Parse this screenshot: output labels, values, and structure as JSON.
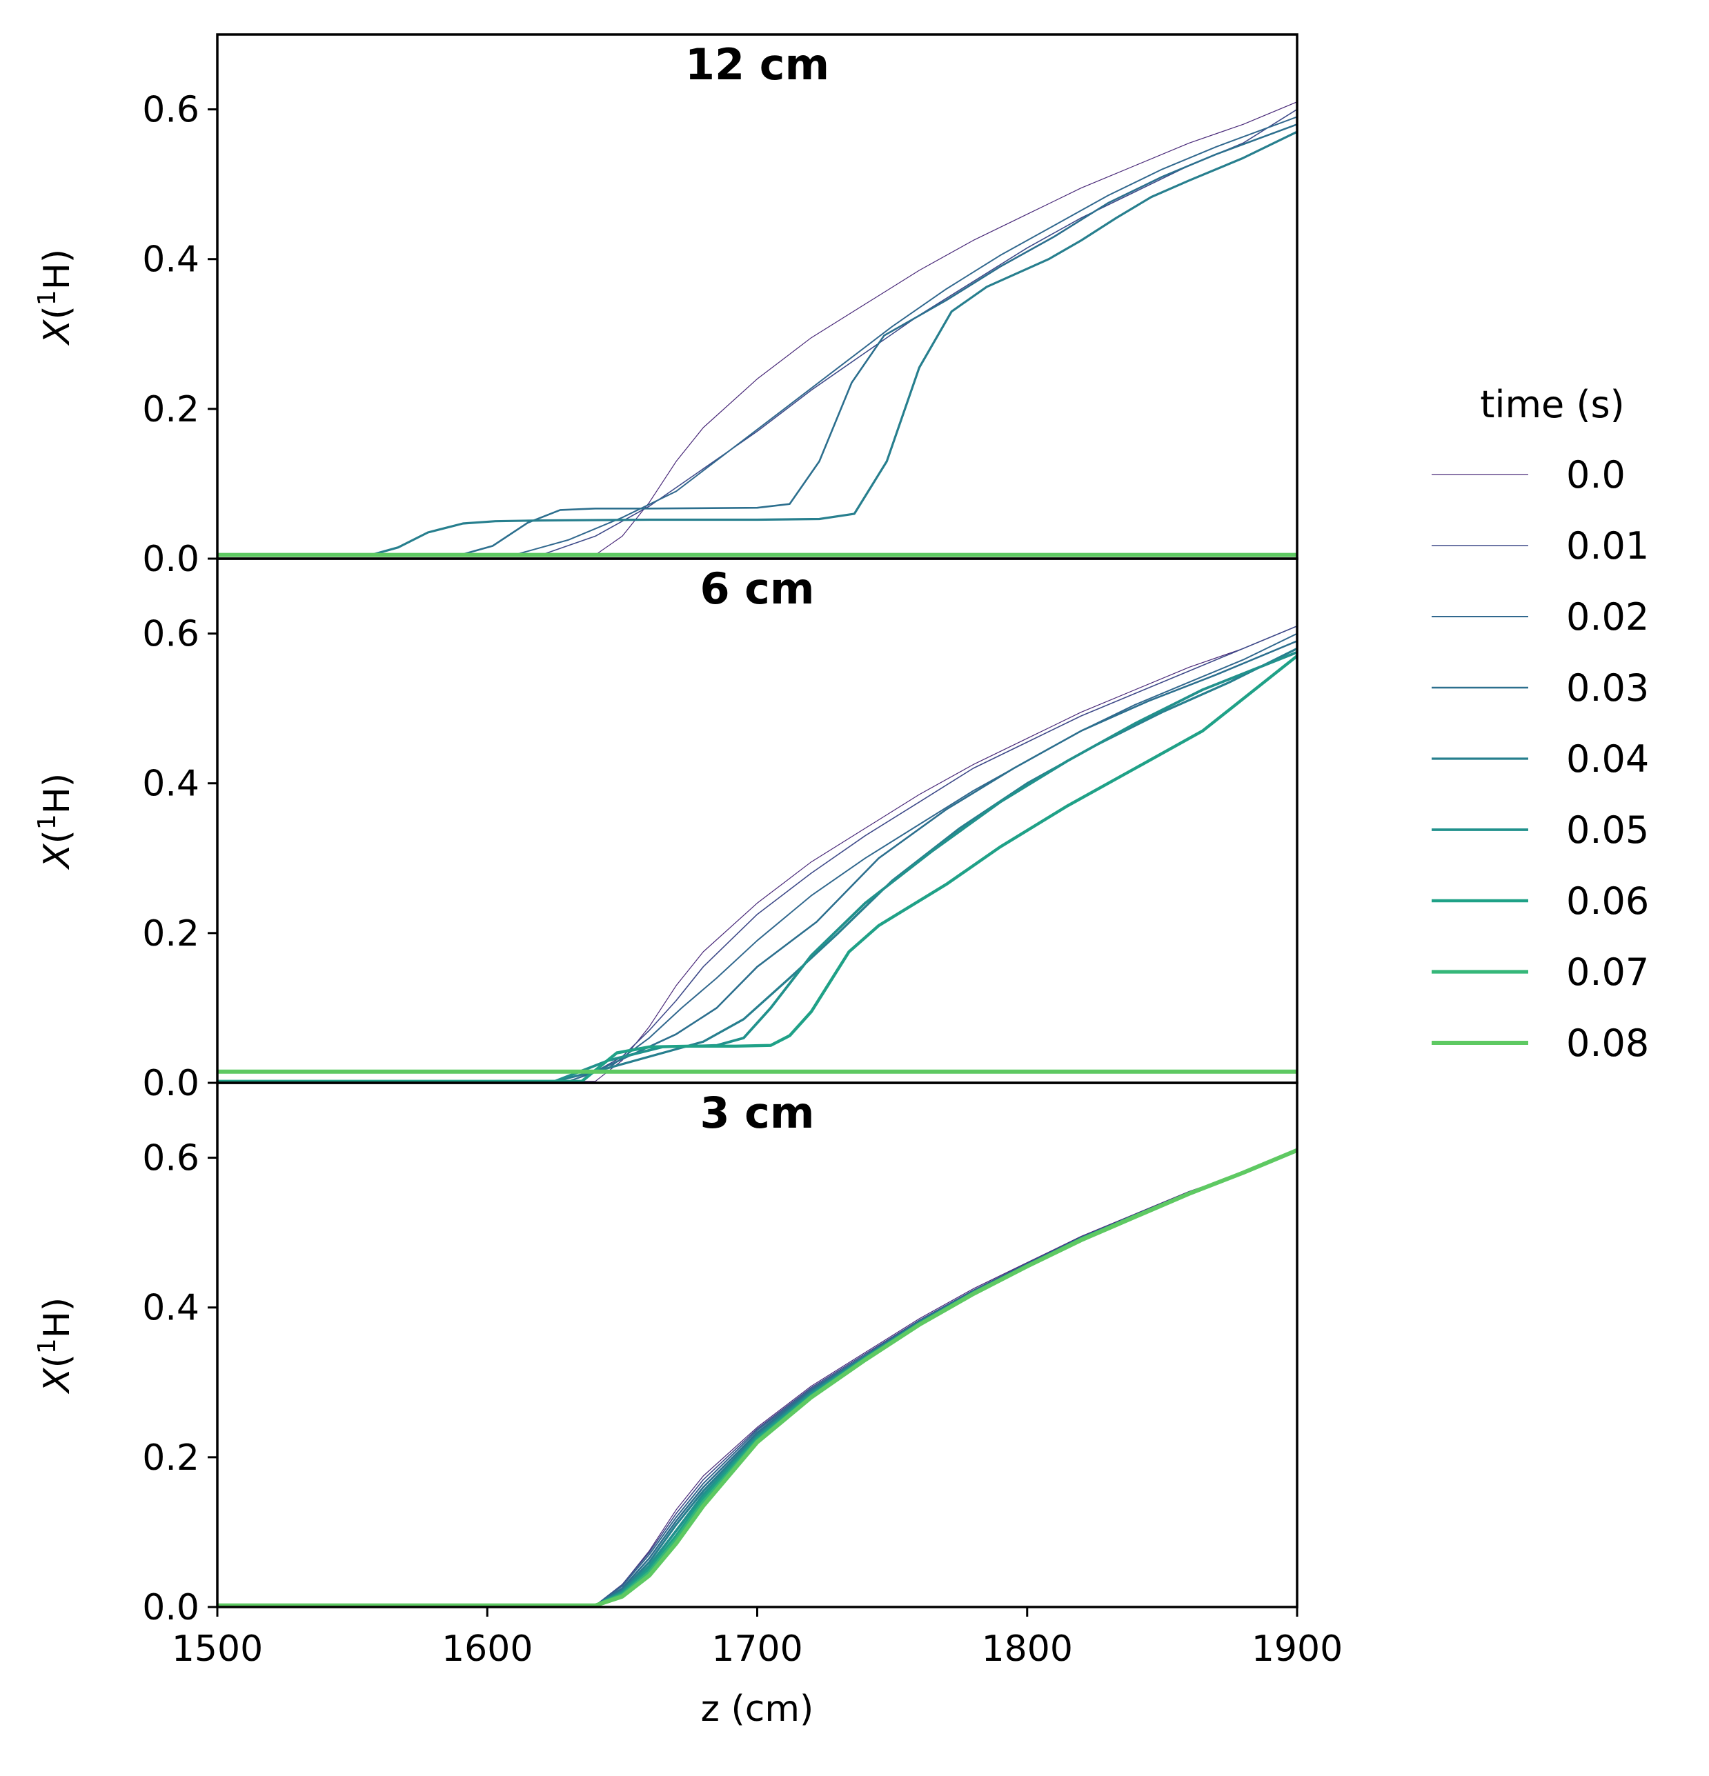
{
  "chart_data": {
    "type": "line",
    "xlabel": "z (cm)",
    "xlim": [
      1500,
      1900
    ],
    "x_ticks": [
      "1500",
      "1600",
      "1700",
      "1800",
      "1900"
    ],
    "ylim": [
      0.0,
      0.7
    ],
    "y_ticks": [
      "0.0",
      "0.2",
      "0.4",
      "0.6"
    ],
    "legend": {
      "title": "time (s)",
      "placement": "right",
      "entries": [
        {
          "label": "0.0",
          "color": "#482878",
          "width": 1.2
        },
        {
          "label": "0.01",
          "color": "#3e4a89",
          "width": 1.6
        },
        {
          "label": "0.02",
          "color": "#31688e",
          "width": 2.0
        },
        {
          "label": "0.03",
          "color": "#2c6f8e",
          "width": 2.6
        },
        {
          "label": "0.04",
          "color": "#277f8e",
          "width": 3.2
        },
        {
          "label": "0.05",
          "color": "#21918c",
          "width": 3.8
        },
        {
          "label": "0.06",
          "color": "#1fa187",
          "width": 4.4
        },
        {
          "label": "0.07",
          "color": "#35b779",
          "width": 5.2
        },
        {
          "label": "0.08",
          "color": "#5ec962",
          "width": 6.0
        }
      ]
    },
    "panels": [
      {
        "title": "12 cm",
        "ylabel_main": "X",
        "ylabel_sup": "1",
        "ylabel_rest": "H)",
        "series": [
          {
            "name": "0.0",
            "x": [
              1500,
              1640,
              1650,
              1660,
              1670,
              1680,
              1700,
              1720,
              1740,
              1760,
              1780,
              1800,
              1820,
              1840,
              1860,
              1880,
              1900
            ],
            "y": [
              0.005,
              0.005,
              0.03,
              0.075,
              0.13,
              0.175,
              0.24,
              0.295,
              0.34,
              0.385,
              0.425,
              0.46,
              0.495,
              0.525,
              0.555,
              0.58,
              0.61
            ]
          },
          {
            "name": "0.01",
            "x": [
              1500,
              1620,
              1640,
              1660,
              1680,
              1700,
              1720,
              1740,
              1760,
              1780,
              1800,
              1820,
              1840,
              1860,
              1880,
              1900
            ],
            "y": [
              0.005,
              0.005,
              0.03,
              0.07,
              0.12,
              0.17,
              0.225,
              0.275,
              0.325,
              0.37,
              0.415,
              0.455,
              0.49,
              0.525,
              0.555,
              0.6
            ]
          },
          {
            "name": "0.02",
            "x": [
              1500,
              1610,
              1630,
              1650,
              1670,
              1690,
              1710,
              1730,
              1750,
              1770,
              1790,
              1810,
              1830,
              1850,
              1870,
              1900
            ],
            "y": [
              0.005,
              0.005,
              0.025,
              0.055,
              0.09,
              0.145,
              0.2,
              0.255,
              0.31,
              0.36,
              0.405,
              0.445,
              0.485,
              0.52,
              0.55,
              0.59
            ]
          },
          {
            "name": "0.03",
            "x": [
              1500,
              1590,
              1602,
              1615,
              1627,
              1640,
              1660,
              1700,
              1712,
              1723,
              1735,
              1747,
              1770,
              1790,
              1810,
              1830,
              1850,
              1870,
              1900
            ],
            "y": [
              0.005,
              0.005,
              0.017,
              0.048,
              0.065,
              0.067,
              0.067,
              0.068,
              0.073,
              0.13,
              0.235,
              0.298,
              0.345,
              0.39,
              0.43,
              0.475,
              0.51,
              0.54,
              0.58
            ]
          },
          {
            "name": "0.04",
            "x": [
              1500,
              1557,
              1567,
              1578,
              1591,
              1603,
              1620,
              1660,
              1700,
              1723,
              1736,
              1748,
              1760,
              1772,
              1785,
              1808,
              1820,
              1833,
              1846,
              1860,
              1880,
              1900
            ],
            "y": [
              0.005,
              0.005,
              0.015,
              0.035,
              0.047,
              0.05,
              0.051,
              0.052,
              0.052,
              0.053,
              0.06,
              0.13,
              0.255,
              0.33,
              0.363,
              0.4,
              0.425,
              0.455,
              0.483,
              0.505,
              0.535,
              0.57
            ]
          },
          {
            "name": "0.05",
            "x": [
              1500,
              1900
            ],
            "y": [
              0.005,
              0.005
            ]
          },
          {
            "name": "0.06",
            "x": [
              1500,
              1900
            ],
            "y": [
              0.005,
              0.005
            ]
          },
          {
            "name": "0.07",
            "x": [
              1500,
              1900
            ],
            "y": [
              0.005,
              0.005
            ]
          },
          {
            "name": "0.08",
            "x": [
              1500,
              1900
            ],
            "y": [
              0.005,
              0.005
            ]
          }
        ]
      },
      {
        "title": "6 cm",
        "ylabel_main": "X",
        "ylabel_sup": "1",
        "ylabel_rest": "H)",
        "series": [
          {
            "name": "0.0",
            "x": [
              1500,
              1640,
              1650,
              1660,
              1670,
              1680,
              1700,
              1720,
              1740,
              1760,
              1780,
              1800,
              1820,
              1840,
              1860,
              1880,
              1900
            ],
            "y": [
              0.002,
              0.002,
              0.03,
              0.075,
              0.13,
              0.175,
              0.24,
              0.295,
              0.34,
              0.385,
              0.425,
              0.46,
              0.495,
              0.525,
              0.555,
              0.58,
              0.61
            ]
          },
          {
            "name": "0.01",
            "x": [
              1500,
              1630,
              1640,
              1650,
              1660,
              1670,
              1680,
              1700,
              1720,
              1740,
              1760,
              1780,
              1800,
              1820,
              1840,
              1860,
              1880,
              1900
            ],
            "y": [
              0.002,
              0.002,
              0.015,
              0.035,
              0.07,
              0.11,
              0.155,
              0.225,
              0.28,
              0.33,
              0.375,
              0.42,
              0.455,
              0.49,
              0.52,
              0.55,
              0.58,
              0.61
            ]
          },
          {
            "name": "0.02",
            "x": [
              1500,
              1630,
              1645,
              1660,
              1672,
              1685,
              1700,
              1720,
              1740,
              1760,
              1780,
              1800,
              1820,
              1840,
              1860,
              1880,
              1900
            ],
            "y": [
              0.002,
              0.002,
              0.02,
              0.06,
              0.1,
              0.14,
              0.19,
              0.25,
              0.3,
              0.345,
              0.39,
              0.43,
              0.47,
              0.505,
              0.535,
              0.565,
              0.6
            ]
          },
          {
            "name": "0.03",
            "x": [
              1500,
              1625,
              1640,
              1655,
              1670,
              1685,
              1700,
              1722,
              1745,
              1770,
              1795,
              1820,
              1845,
              1870,
              1900
            ],
            "y": [
              0.002,
              0.002,
              0.015,
              0.04,
              0.065,
              0.1,
              0.155,
              0.215,
              0.3,
              0.365,
              0.42,
              0.47,
              0.51,
              0.545,
              0.59
            ]
          },
          {
            "name": "0.04",
            "x": [
              1500,
              1625,
              1645,
              1665,
              1680,
              1695,
              1712,
              1730,
              1750,
              1775,
              1800,
              1825,
              1850,
              1875,
              1900
            ],
            "y": [
              0.002,
              0.002,
              0.02,
              0.04,
              0.055,
              0.085,
              0.14,
              0.2,
              0.27,
              0.34,
              0.4,
              0.45,
              0.495,
              0.535,
              0.58
            ]
          },
          {
            "name": "0.05",
            "x": [
              1500,
              1625,
              1645,
              1665,
              1685,
              1695,
              1705,
              1720,
              1740,
              1765,
              1790,
              1815,
              1840,
              1865,
              1900
            ],
            "y": [
              0.002,
              0.002,
              0.03,
              0.048,
              0.05,
              0.06,
              0.1,
              0.17,
              0.24,
              0.31,
              0.375,
              0.43,
              0.48,
              0.525,
              0.575
            ]
          },
          {
            "name": "0.06",
            "x": [
              1500,
              1635,
              1648,
              1660,
              1675,
              1692,
              1705,
              1712,
              1720,
              1734,
              1745,
              1770,
              1790,
              1815,
              1840,
              1865,
              1900
            ],
            "y": [
              0.002,
              0.002,
              0.04,
              0.048,
              0.049,
              0.049,
              0.05,
              0.063,
              0.095,
              0.175,
              0.21,
              0.265,
              0.315,
              0.37,
              0.42,
              0.47,
              0.57
            ]
          },
          {
            "name": "0.07",
            "x": [
              1500,
              1900
            ],
            "y": [
              0.015,
              0.015
            ]
          },
          {
            "name": "0.08",
            "x": [
              1500,
              1900
            ],
            "y": [
              0.015,
              0.015
            ]
          }
        ]
      },
      {
        "title": "3 cm",
        "ylabel_main": "X",
        "ylabel_sup": "1",
        "ylabel_rest": "H)",
        "series": [
          {
            "name": "0.0",
            "x": [
              1500,
              1640,
              1650,
              1660,
              1670,
              1680,
              1700,
              1720,
              1740,
              1760,
              1780,
              1800,
              1820,
              1840,
              1860,
              1880,
              1900
            ],
            "y": [
              0.002,
              0.002,
              0.03,
              0.075,
              0.13,
              0.175,
              0.24,
              0.295,
              0.34,
              0.385,
              0.425,
              0.46,
              0.495,
              0.525,
              0.555,
              0.58,
              0.61
            ]
          },
          {
            "name": "0.01",
            "x": [
              1500,
              1640,
              1650,
              1660,
              1670,
              1680,
              1700,
              1720,
              1740,
              1760,
              1780,
              1800,
              1820,
              1840,
              1860,
              1880,
              1900
            ],
            "y": [
              0.002,
              0.002,
              0.03,
              0.073,
              0.125,
              0.17,
              0.238,
              0.293,
              0.338,
              0.383,
              0.423,
              0.459,
              0.494,
              0.524,
              0.554,
              0.58,
              0.61
            ]
          },
          {
            "name": "0.02",
            "x": [
              1500,
              1640,
              1650,
              1660,
              1670,
              1680,
              1700,
              1720,
              1740,
              1760,
              1780,
              1800,
              1820,
              1840,
              1860,
              1880,
              1900
            ],
            "y": [
              0.002,
              0.002,
              0.028,
              0.07,
              0.12,
              0.165,
              0.236,
              0.291,
              0.336,
              0.382,
              0.422,
              0.458,
              0.493,
              0.523,
              0.554,
              0.58,
              0.61
            ]
          },
          {
            "name": "0.03",
            "x": [
              1500,
              1640,
              1650,
              1660,
              1670,
              1680,
              1700,
              1720,
              1740,
              1760,
              1780,
              1800,
              1820,
              1840,
              1860,
              1880,
              1900
            ],
            "y": [
              0.002,
              0.002,
              0.025,
              0.065,
              0.115,
              0.16,
              0.233,
              0.289,
              0.335,
              0.381,
              0.421,
              0.457,
              0.493,
              0.523,
              0.553,
              0.58,
              0.61
            ]
          },
          {
            "name": "0.04",
            "x": [
              1500,
              1640,
              1650,
              1660,
              1670,
              1680,
              1700,
              1720,
              1740,
              1760,
              1780,
              1800,
              1820,
              1840,
              1860,
              1880,
              1900
            ],
            "y": [
              0.002,
              0.002,
              0.022,
              0.06,
              0.11,
              0.155,
              0.23,
              0.287,
              0.334,
              0.38,
              0.42,
              0.457,
              0.492,
              0.523,
              0.553,
              0.58,
              0.61
            ]
          },
          {
            "name": "0.05",
            "x": [
              1500,
              1640,
              1650,
              1660,
              1670,
              1680,
              1700,
              1720,
              1740,
              1760,
              1780,
              1800,
              1820,
              1840,
              1860,
              1880,
              1900
            ],
            "y": [
              0.002,
              0.002,
              0.02,
              0.055,
              0.102,
              0.15,
              0.227,
              0.285,
              0.333,
              0.379,
              0.42,
              0.456,
              0.492,
              0.522,
              0.553,
              0.58,
              0.61
            ]
          },
          {
            "name": "0.06",
            "x": [
              1500,
              1640,
              1650,
              1660,
              1670,
              1680,
              1700,
              1720,
              1740,
              1760,
              1780,
              1800,
              1820,
              1840,
              1860,
              1880,
              1900
            ],
            "y": [
              0.002,
              0.002,
              0.018,
              0.05,
              0.095,
              0.145,
              0.225,
              0.283,
              0.332,
              0.378,
              0.419,
              0.456,
              0.491,
              0.522,
              0.552,
              0.58,
              0.61
            ]
          },
          {
            "name": "0.07",
            "x": [
              1500,
              1640,
              1650,
              1660,
              1670,
              1680,
              1700,
              1720,
              1740,
              1760,
              1780,
              1800,
              1820,
              1840,
              1860,
              1880,
              1900
            ],
            "y": [
              0.002,
              0.002,
              0.016,
              0.046,
              0.09,
              0.14,
              0.222,
              0.281,
              0.331,
              0.377,
              0.419,
              0.455,
              0.491,
              0.522,
              0.552,
              0.58,
              0.61
            ]
          },
          {
            "name": "0.08",
            "x": [
              1500,
              1640,
              1650,
              1660,
              1670,
              1680,
              1700,
              1720,
              1740,
              1760,
              1780,
              1800,
              1820,
              1840,
              1860,
              1880,
              1900
            ],
            "y": [
              0.002,
              0.002,
              0.014,
              0.042,
              0.085,
              0.135,
              0.22,
              0.28,
              0.33,
              0.377,
              0.418,
              0.455,
              0.49,
              0.521,
              0.552,
              0.58,
              0.61
            ]
          }
        ]
      }
    ]
  }
}
